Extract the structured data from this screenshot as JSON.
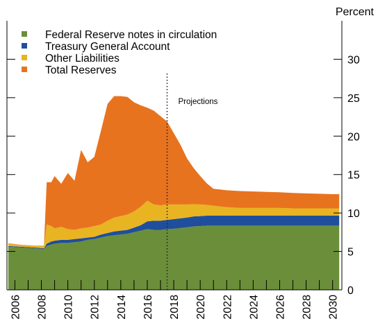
{
  "chart_data": {
    "type": "area",
    "stacked": true,
    "y_unit_label": "Percent",
    "y_axis_position": "right",
    "ylim": [
      0,
      35
    ],
    "yticks": [
      0,
      5,
      10,
      15,
      20,
      25,
      30
    ],
    "xlim": [
      2005.4,
      2030.7
    ],
    "xticks": [
      "2006",
      "2008",
      "2010",
      "2012",
      "2014",
      "2016",
      "2018",
      "2020",
      "2022",
      "2024",
      "2026",
      "2028",
      "2030"
    ],
    "grid": false,
    "legend_position": "top-left",
    "annotations": [
      {
        "text": "Projections",
        "x": 2017.5,
        "style": "dotted vertical line"
      }
    ],
    "x": [
      2005.5,
      2006.5,
      2007.5,
      2008.2,
      2008.4,
      2008.75,
      2009.0,
      2009.5,
      2010.0,
      2010.5,
      2011.0,
      2011.5,
      2012.0,
      2012.5,
      2013.0,
      2013.5,
      2014.0,
      2014.5,
      2015.0,
      2015.5,
      2016.0,
      2016.5,
      2017.0,
      2017.5,
      2018.0,
      2018.5,
      2019.0,
      2019.5,
      2020.0,
      2020.5,
      2021.0,
      2021.5,
      2022.0,
      2023.0,
      2024.0,
      2025.0,
      2026.0,
      2027.0,
      2028.0,
      2029.0,
      2030.0,
      2030.5
    ],
    "series": [
      {
        "name": "Federal Reserve notes in circulation",
        "color": "#6b8e3a",
        "values": [
          5.6,
          5.5,
          5.4,
          5.3,
          5.7,
          5.9,
          6.0,
          6.1,
          6.1,
          6.2,
          6.3,
          6.5,
          6.6,
          6.8,
          7.0,
          7.1,
          7.2,
          7.3,
          7.5,
          7.7,
          7.9,
          7.8,
          7.8,
          7.9,
          7.95,
          8.05,
          8.15,
          8.25,
          8.3,
          8.35,
          8.35,
          8.35,
          8.35,
          8.35,
          8.35,
          8.35,
          8.35,
          8.35,
          8.35,
          8.35,
          8.35,
          8.35
        ]
      },
      {
        "name": "Treasury General Account",
        "color": "#1f4e9c",
        "values": [
          0.1,
          0.1,
          0.1,
          0.1,
          0.3,
          0.4,
          0.4,
          0.4,
          0.4,
          0.4,
          0.4,
          0.3,
          0.3,
          0.4,
          0.4,
          0.5,
          0.5,
          0.5,
          0.6,
          0.7,
          1.0,
          1.2,
          1.2,
          1.2,
          1.25,
          1.25,
          1.25,
          1.3,
          1.3,
          1.3,
          1.3,
          1.3,
          1.3,
          1.3,
          1.3,
          1.3,
          1.3,
          1.3,
          1.3,
          1.3,
          1.3,
          1.3
        ]
      },
      {
        "name": "Other Liabilities",
        "color": "#e8b422",
        "values": [
          0.3,
          0.2,
          0.2,
          0.3,
          2.5,
          2.0,
          1.6,
          1.7,
          1.4,
          1.2,
          1.3,
          1.3,
          1.4,
          1.3,
          1.6,
          1.8,
          1.9,
          2.0,
          2.1,
          2.4,
          2.7,
          2.1,
          2.0,
          2.0,
          1.9,
          1.8,
          1.7,
          1.6,
          1.5,
          1.4,
          1.3,
          1.2,
          1.1,
          1.0,
          1.0,
          1.0,
          1.0,
          0.95,
          0.95,
          0.95,
          0.95,
          0.95
        ]
      },
      {
        "name": "Total Reserves",
        "color": "#e8731f",
        "values": [
          0.05,
          0.05,
          0.05,
          0.05,
          5.5,
          5.7,
          6.8,
          5.6,
          7.3,
          6.4,
          10.2,
          8.5,
          9.0,
          12.2,
          15.2,
          15.8,
          15.6,
          15.3,
          14.2,
          13.2,
          12.1,
          12.2,
          11.6,
          10.8,
          9.3,
          7.8,
          6.0,
          4.7,
          3.7,
          2.8,
          2.2,
          2.2,
          2.2,
          2.2,
          2.15,
          2.1,
          2.05,
          2.0,
          1.95,
          1.9,
          1.85,
          1.85
        ]
      }
    ]
  }
}
